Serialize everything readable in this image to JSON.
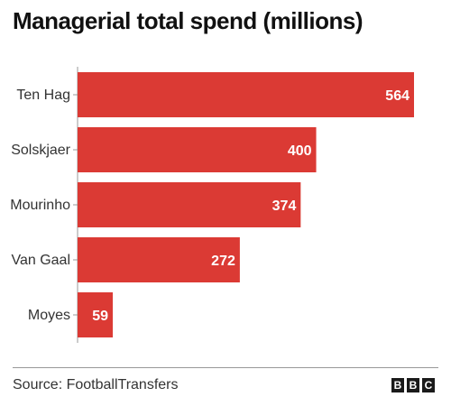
{
  "chart_data": {
    "type": "bar",
    "orientation": "horizontal",
    "title": "Managerial total spend (millions)",
    "categories": [
      "Ten Hag",
      "Solskjaer",
      "Mourinho",
      "Van Gaal",
      "Moyes"
    ],
    "values": [
      564,
      400,
      374,
      272,
      59
    ],
    "xlim": [
      0,
      564
    ],
    "grid": false,
    "color": "#db3a34"
  },
  "footer": {
    "source": "Source: FootballTransfers",
    "logo_letters": [
      "B",
      "B",
      "C"
    ]
  }
}
